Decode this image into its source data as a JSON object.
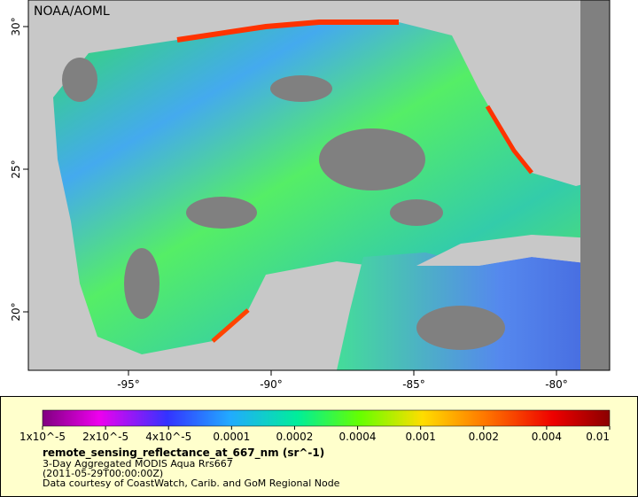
{
  "map": {
    "label": "NOAA/AOML",
    "lat_ticks": [
      "30°",
      "25°",
      "20°"
    ],
    "lon_ticks": [
      "-95°",
      "-90°",
      "-85°",
      "-80°"
    ]
  },
  "legend": {
    "colorbar_ticks": [
      "1x10^-5",
      "2x10^-5",
      "4x10^-5",
      "0.0001",
      "0.0002",
      "0.0004",
      "0.001",
      "0.002",
      "0.004",
      "0.01"
    ],
    "variable": "remote_sensing_reflectance_at_667_nm (sr^-1)",
    "dataset": "3-Day Aggregated MODIS Aqua Rrs667",
    "time": "(2011-05-29T00:00:00Z)",
    "credit": "Data courtesy of CoastWatch, Carib. and GoM Regional Node"
  }
}
